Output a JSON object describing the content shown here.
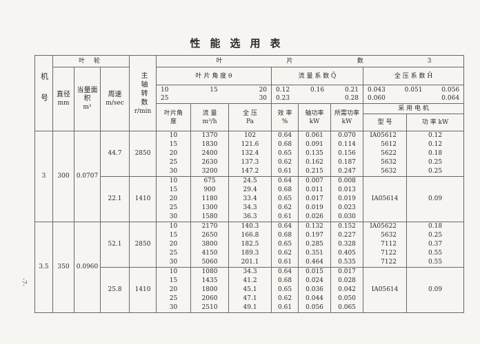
{
  "title": "性能选用表",
  "page_number": "-7-",
  "header": {
    "machine_no": "机号",
    "impeller": "叶 轮",
    "diameter": "直径",
    "diameter_unit": "mm",
    "area": "当量面积",
    "area_unit": "m²",
    "speed": "周速",
    "speed_unit": "m/sec",
    "rpm": "主轴转数",
    "rpm_unit": "r/min",
    "blade_count_label_1": "叶",
    "blade_count_label_2": "片",
    "blade_count_label_3": "数",
    "blade_count": "3",
    "blade_angle_label": "叶 片 角 度 θ",
    "flow_coef_label": "流 量 系 数 Q̄",
    "pressure_coef_label": "全 压 系 数 H̄",
    "angles_line1": [
      "10",
      "15",
      "20"
    ],
    "angles_line2": [
      "25",
      "30"
    ],
    "q_line1": [
      "0.12",
      "0.16",
      "0.21"
    ],
    "q_line2": [
      "0.23",
      "0.28"
    ],
    "h_line1": [
      "0.043",
      "0.051",
      "0.056"
    ],
    "h_line2": [
      "0.060",
      "0.064"
    ],
    "col_angle": "叶片角度",
    "col_flow": "流 量",
    "col_flow_unit": "m³/h",
    "col_pressure": "全 压",
    "col_pressure_unit": "Pa",
    "col_eff": "效 率",
    "col_eff_unit": "%",
    "col_shaft": "轴功率",
    "col_shaft_unit": "kW",
    "col_req": "所需功率",
    "col_req_unit": "kW",
    "motor": "采 用 电 机",
    "motor_model": "型 号",
    "motor_power": "功 率 kW"
  },
  "groups": [
    {
      "machine": "3",
      "diameter": "300",
      "area": "0.0707",
      "speeds": [
        {
          "speed": "44.7",
          "rpm": "2850",
          "rows": [
            [
              "10",
              "1370",
              "102",
              "0.64",
              "0.061",
              "0.070",
              "IA05612",
              "0.12"
            ],
            [
              "15",
              "1830",
              "121.6",
              "0.68",
              "0.091",
              "0.114",
              "5612",
              "0.12"
            ],
            [
              "20",
              "2400",
              "132.4",
              "0.65",
              "0.135",
              "0.156",
              "5622",
              "0.18"
            ],
            [
              "25",
              "2630",
              "137.3",
              "0.62",
              "0.162",
              "0.187",
              "5632",
              "0.25"
            ],
            [
              "30",
              "3200",
              "147.2",
              "0.61",
              "0.215",
              "0.247",
              "5632",
              "0.25"
            ]
          ],
          "motor_model": null,
          "motor_power": null
        },
        {
          "speed": "22.1",
          "rpm": "1410",
          "rows": [
            [
              "10",
              "675",
              "24.5",
              "0.64",
              "0.007",
              "0.008"
            ],
            [
              "15",
              "900",
              "29.4",
              "0.68",
              "0.011",
              "0.013"
            ],
            [
              "20",
              "1180",
              "33.4",
              "0.65",
              "0.017",
              "0.019"
            ],
            [
              "25",
              "1300",
              "34.3",
              "0.62",
              "0.019",
              "0.023"
            ],
            [
              "30",
              "1580",
              "36.3",
              "0.61",
              "0.026",
              "0.030"
            ]
          ],
          "motor_model": "IA05614",
          "motor_power": "0.09"
        }
      ]
    },
    {
      "machine": "3.5",
      "diameter": "350",
      "area": "0.0960",
      "speeds": [
        {
          "speed": "52.1",
          "rpm": "2850",
          "rows": [
            [
              "10",
              "2170",
              "140.3",
              "0.64",
              "0.132",
              "0.152",
              "IA05622",
              "0.18"
            ],
            [
              "15",
              "2650",
              "166.8",
              "0.68",
              "0.197",
              "0.227",
              "5632",
              "0.25"
            ],
            [
              "20",
              "3800",
              "182.5",
              "0.65",
              "0.285",
              "0.328",
              "7112",
              "0.37"
            ],
            [
              "25",
              "4150",
              "189.3",
              "0.62",
              "0.351",
              "0.405",
              "7122",
              "0.55"
            ],
            [
              "30",
              "5060",
              "201.1",
              "0.61",
              "0.464",
              "0.535",
              "7122",
              "0.55"
            ]
          ],
          "motor_model": null,
          "motor_power": null
        },
        {
          "speed": "25.8",
          "rpm": "1410",
          "rows": [
            [
              "10",
              "1080",
              "34.3",
              "0.64",
              "0.015",
              "0.017"
            ],
            [
              "15",
              "1435",
              "41.2",
              "0.68",
              "0.024",
              "0.028"
            ],
            [
              "20",
              "1800",
              "45.1",
              "0.65",
              "0.036",
              "0.042"
            ],
            [
              "25",
              "2060",
              "47.1",
              "0.62",
              "0.044",
              "0.050"
            ],
            [
              "30",
              "2510",
              "49.1",
              "0.61",
              "0.056",
              "0.065"
            ]
          ],
          "motor_model": "IA05614",
          "motor_power": "0.09"
        }
      ]
    }
  ]
}
